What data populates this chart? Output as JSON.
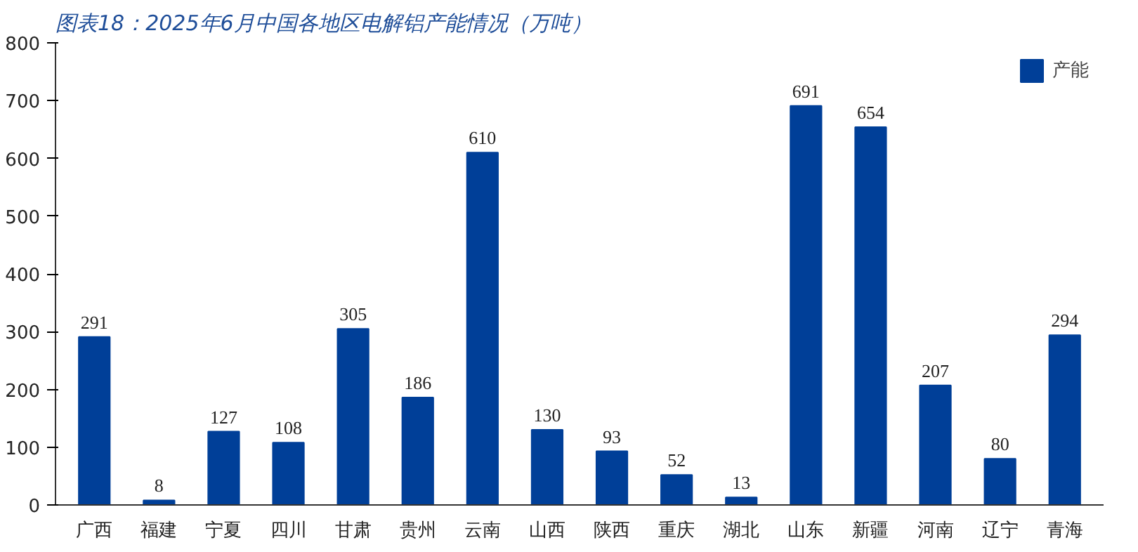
{
  "chart_data": {
    "type": "bar",
    "title": "图表18：2025年6月中国各地区电解铝产能情况（万吨）",
    "categories": [
      "广西",
      "福建",
      "宁夏",
      "四川",
      "甘肃",
      "贵州",
      "云南",
      "山西",
      "陕西",
      "重庆",
      "湖北",
      "山东",
      "新疆",
      "河南",
      "辽宁",
      "青海"
    ],
    "series": [
      {
        "name": "产能",
        "color": "#003f98",
        "values": [
          291,
          8,
          127,
          108,
          305,
          186,
          610,
          130,
          93,
          52,
          13,
          691,
          654,
          207,
          80,
          294
        ]
      }
    ],
    "ylim": [
      0,
      800
    ],
    "yticks": [
      0,
      100,
      200,
      300,
      400,
      500,
      600,
      700,
      800
    ],
    "data_labels": true,
    "grid": false,
    "legend": "top right"
  }
}
